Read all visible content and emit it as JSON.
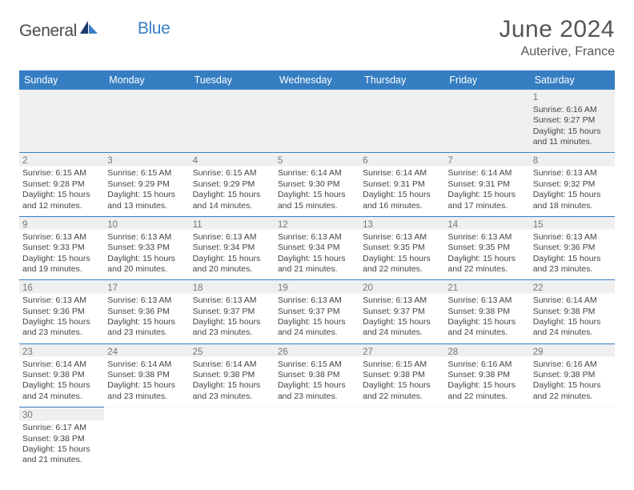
{
  "brand": {
    "part1": "General",
    "part2": "Blue",
    "text_color1": "#4a4a4a",
    "text_color2": "#3a7fc4",
    "sail_color_dark": "#1b3a6b",
    "sail_color_light": "#3a7fc4"
  },
  "header": {
    "month_title": "June 2024",
    "location": "Auterive, France"
  },
  "styling": {
    "header_bg": "#357ec2",
    "header_text": "#ffffff",
    "cell_border": "#357ec2",
    "empty_bg": "#f0f0f0",
    "text_color": "#444444",
    "daynum_color": "#777777"
  },
  "weekdays": [
    "Sunday",
    "Monday",
    "Tuesday",
    "Wednesday",
    "Thursday",
    "Friday",
    "Saturday"
  ],
  "rows": [
    [
      null,
      null,
      null,
      null,
      null,
      null,
      {
        "n": "1",
        "sunrise": "6:16 AM",
        "sunset": "9:27 PM",
        "dl1": "15 hours",
        "dl2": "and 11 minutes."
      }
    ],
    [
      {
        "n": "2",
        "sunrise": "6:15 AM",
        "sunset": "9:28 PM",
        "dl1": "15 hours",
        "dl2": "and 12 minutes."
      },
      {
        "n": "3",
        "sunrise": "6:15 AM",
        "sunset": "9:29 PM",
        "dl1": "15 hours",
        "dl2": "and 13 minutes."
      },
      {
        "n": "4",
        "sunrise": "6:15 AM",
        "sunset": "9:29 PM",
        "dl1": "15 hours",
        "dl2": "and 14 minutes."
      },
      {
        "n": "5",
        "sunrise": "6:14 AM",
        "sunset": "9:30 PM",
        "dl1": "15 hours",
        "dl2": "and 15 minutes."
      },
      {
        "n": "6",
        "sunrise": "6:14 AM",
        "sunset": "9:31 PM",
        "dl1": "15 hours",
        "dl2": "and 16 minutes."
      },
      {
        "n": "7",
        "sunrise": "6:14 AM",
        "sunset": "9:31 PM",
        "dl1": "15 hours",
        "dl2": "and 17 minutes."
      },
      {
        "n": "8",
        "sunrise": "6:13 AM",
        "sunset": "9:32 PM",
        "dl1": "15 hours",
        "dl2": "and 18 minutes."
      }
    ],
    [
      {
        "n": "9",
        "sunrise": "6:13 AM",
        "sunset": "9:33 PM",
        "dl1": "15 hours",
        "dl2": "and 19 minutes."
      },
      {
        "n": "10",
        "sunrise": "6:13 AM",
        "sunset": "9:33 PM",
        "dl1": "15 hours",
        "dl2": "and 20 minutes."
      },
      {
        "n": "11",
        "sunrise": "6:13 AM",
        "sunset": "9:34 PM",
        "dl1": "15 hours",
        "dl2": "and 20 minutes."
      },
      {
        "n": "12",
        "sunrise": "6:13 AM",
        "sunset": "9:34 PM",
        "dl1": "15 hours",
        "dl2": "and 21 minutes."
      },
      {
        "n": "13",
        "sunrise": "6:13 AM",
        "sunset": "9:35 PM",
        "dl1": "15 hours",
        "dl2": "and 22 minutes."
      },
      {
        "n": "14",
        "sunrise": "6:13 AM",
        "sunset": "9:35 PM",
        "dl1": "15 hours",
        "dl2": "and 22 minutes."
      },
      {
        "n": "15",
        "sunrise": "6:13 AM",
        "sunset": "9:36 PM",
        "dl1": "15 hours",
        "dl2": "and 23 minutes."
      }
    ],
    [
      {
        "n": "16",
        "sunrise": "6:13 AM",
        "sunset": "9:36 PM",
        "dl1": "15 hours",
        "dl2": "and 23 minutes."
      },
      {
        "n": "17",
        "sunrise": "6:13 AM",
        "sunset": "9:36 PM",
        "dl1": "15 hours",
        "dl2": "and 23 minutes."
      },
      {
        "n": "18",
        "sunrise": "6:13 AM",
        "sunset": "9:37 PM",
        "dl1": "15 hours",
        "dl2": "and 23 minutes."
      },
      {
        "n": "19",
        "sunrise": "6:13 AM",
        "sunset": "9:37 PM",
        "dl1": "15 hours",
        "dl2": "and 24 minutes."
      },
      {
        "n": "20",
        "sunrise": "6:13 AM",
        "sunset": "9:37 PM",
        "dl1": "15 hours",
        "dl2": "and 24 minutes."
      },
      {
        "n": "21",
        "sunrise": "6:13 AM",
        "sunset": "9:38 PM",
        "dl1": "15 hours",
        "dl2": "and 24 minutes."
      },
      {
        "n": "22",
        "sunrise": "6:14 AM",
        "sunset": "9:38 PM",
        "dl1": "15 hours",
        "dl2": "and 24 minutes."
      }
    ],
    [
      {
        "n": "23",
        "sunrise": "6:14 AM",
        "sunset": "9:38 PM",
        "dl1": "15 hours",
        "dl2": "and 24 minutes."
      },
      {
        "n": "24",
        "sunrise": "6:14 AM",
        "sunset": "9:38 PM",
        "dl1": "15 hours",
        "dl2": "and 23 minutes."
      },
      {
        "n": "25",
        "sunrise": "6:14 AM",
        "sunset": "9:38 PM",
        "dl1": "15 hours",
        "dl2": "and 23 minutes."
      },
      {
        "n": "26",
        "sunrise": "6:15 AM",
        "sunset": "9:38 PM",
        "dl1": "15 hours",
        "dl2": "and 23 minutes."
      },
      {
        "n": "27",
        "sunrise": "6:15 AM",
        "sunset": "9:38 PM",
        "dl1": "15 hours",
        "dl2": "and 22 minutes."
      },
      {
        "n": "28",
        "sunrise": "6:16 AM",
        "sunset": "9:38 PM",
        "dl1": "15 hours",
        "dl2": "and 22 minutes."
      },
      {
        "n": "29",
        "sunrise": "6:16 AM",
        "sunset": "9:38 PM",
        "dl1": "15 hours",
        "dl2": "and 22 minutes."
      }
    ],
    [
      {
        "n": "30",
        "sunrise": "6:17 AM",
        "sunset": "9:38 PM",
        "dl1": "15 hours",
        "dl2": "and 21 minutes."
      },
      null,
      null,
      null,
      null,
      null,
      null
    ]
  ],
  "labels": {
    "sunrise_prefix": "Sunrise: ",
    "sunset_prefix": "Sunset: ",
    "daylight_prefix": "Daylight: "
  }
}
